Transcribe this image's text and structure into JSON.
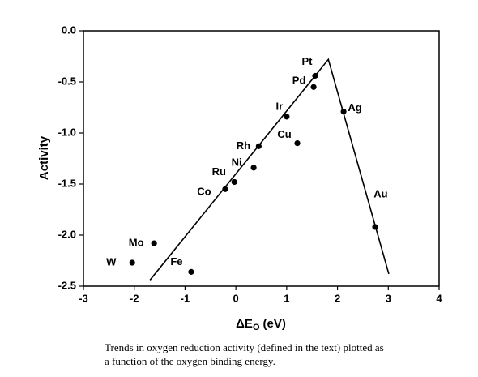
{
  "chart_data": {
    "type": "scatter",
    "ylabel": "Activity",
    "xlabel": {
      "main": "ΔE",
      "sub": "O",
      "unit": "(eV)"
    },
    "points": {
      "labels": [
        "W",
        "Mo",
        "Fe",
        "Co",
        "Ru",
        "Ni",
        "Rh",
        "Cu",
        "Ir",
        "Pd",
        "Pt",
        "Ag",
        "Au"
      ],
      "x": [
        -2.04,
        -1.61,
        -0.88,
        -0.21,
        -0.03,
        0.35,
        0.45,
        1.21,
        1.0,
        1.53,
        1.56,
        2.12,
        2.74
      ],
      "y": [
        -2.27,
        -2.08,
        -2.36,
        -1.55,
        -1.48,
        -1.34,
        -1.13,
        -1.1,
        -0.84,
        -0.55,
        -0.44,
        -0.79,
        -1.92
      ],
      "color": "#000000"
    },
    "trend": {
      "x": [
        -1.69,
        1.82,
        3.01
      ],
      "y": [
        -2.44,
        -0.28,
        -2.38
      ],
      "color": "#000000"
    },
    "xlim": [
      -3,
      4
    ],
    "xticks": [
      -3,
      -2,
      -1,
      0,
      1,
      2,
      3,
      4
    ],
    "ylim": [
      -2.5,
      0
    ],
    "yticks": [
      {
        "value": 0,
        "label": "0.0"
      },
      -0.5,
      {
        "value": -1,
        "label": "-1.0"
      },
      -1.5,
      {
        "value": -2,
        "label": "-2.0"
      },
      -2.5
    ],
    "caption": [
      "Trends in oxygen reduction activity (defined in the text) plotted as",
      "a function of the oxygen binding energy."
    ]
  }
}
